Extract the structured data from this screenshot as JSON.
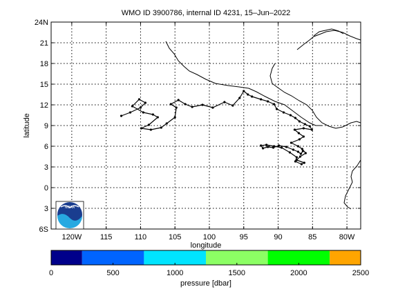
{
  "chart_data": {
    "type": "line",
    "title": "WMO ID 3900786, internal ID 4231, 15–Jun–2022",
    "xlabel": "longitude",
    "ylabel": "latitude",
    "xlim": [
      -123,
      -78
    ],
    "ylim": [
      -6,
      24
    ],
    "grid": true,
    "x_ticks": [
      {
        "value": -120,
        "label": "120W"
      },
      {
        "value": -115,
        "label": "115"
      },
      {
        "value": -110,
        "label": "110"
      },
      {
        "value": -105,
        "label": "105"
      },
      {
        "value": -100,
        "label": "100"
      },
      {
        "value": -95,
        "label": "95"
      },
      {
        "value": -90,
        "label": "90"
      },
      {
        "value": -85,
        "label": "85"
      },
      {
        "value": -80,
        "label": "80W"
      }
    ],
    "y_ticks": [
      {
        "value": 24,
        "label": "24N"
      },
      {
        "value": 21,
        "label": "21"
      },
      {
        "value": 18,
        "label": "18"
      },
      {
        "value": 15,
        "label": "15"
      },
      {
        "value": 12,
        "label": "12"
      },
      {
        "value": 9,
        "label": "9"
      },
      {
        "value": 6,
        "label": "6"
      },
      {
        "value": 3,
        "label": "3"
      },
      {
        "value": 0,
        "label": "0"
      },
      {
        "value": -3,
        "label": "3"
      },
      {
        "value": -6,
        "label": "6S"
      }
    ],
    "series": [
      {
        "color": "#000000",
        "marker": "dot",
        "x": [
          -112.8,
          -111.5,
          -110.0,
          -109.3,
          -110.2,
          -111.2,
          -109.6,
          -108.2,
          -107.5,
          -108.8,
          -109.9,
          -108.5,
          -107.0,
          -106.2,
          -105.0,
          -104.8,
          -105.6,
          -104.5,
          -103.5,
          -102.5,
          -101.0,
          -99.5,
          -97.8,
          -96.6,
          -95.6,
          -95.0,
          -94.4,
          -93.8,
          -92.5,
          -91.5,
          -90.6,
          -90.2,
          -89.2,
          -88.2,
          -87.5,
          -86.9,
          -86.1,
          -85.4,
          -85.1,
          -86.3,
          -87.6,
          -87.0,
          -86.3,
          -86.9,
          -88.1,
          -87.1,
          -86.5,
          -86.0,
          -86.8,
          -87.3,
          -86.2,
          -86.6,
          -87.5,
          -87.3,
          -88.3,
          -89.5,
          -90.6,
          -91.7,
          -92.5,
          -92.2,
          -91.5,
          -90.7,
          -89.9,
          -88.8,
          -87.8,
          -87.1,
          -86.7,
          -86.4
        ],
        "y": [
          10.4,
          10.9,
          11.6,
          12.3,
          12.8,
          11.8,
          10.9,
          10.6,
          10.2,
          9.1,
          8.6,
          8.4,
          8.7,
          9.3,
          10.2,
          11.6,
          12.1,
          12.7,
          12.1,
          11.7,
          12.0,
          11.6,
          12.4,
          11.9,
          13.0,
          14.0,
          13.5,
          13.2,
          12.8,
          12.5,
          12.1,
          11.4,
          10.9,
          10.5,
          10.1,
          9.6,
          9.2,
          8.9,
          8.4,
          8.6,
          8.4,
          7.9,
          7.4,
          7.0,
          6.5,
          6.0,
          5.6,
          5.0,
          4.5,
          4.0,
          3.6,
          3.4,
          3.8,
          4.4,
          5.1,
          5.8,
          6.0,
          6.2,
          6.1,
          5.7,
          5.9,
          5.8,
          6.1,
          5.9,
          5.5,
          5.2,
          4.9,
          5.3
        ]
      }
    ],
    "colorbar": {
      "label": "pressure [dbar]",
      "ticks": [
        "0",
        "500",
        "1000",
        "1500",
        "2000",
        "2500"
      ],
      "range": [
        0,
        2500
      ],
      "bins": [
        {
          "from": 0,
          "to": 250,
          "color": "#00008b"
        },
        {
          "from": 250,
          "to": 750,
          "color": "#0064ff"
        },
        {
          "from": 750,
          "to": 1250,
          "color": "#00e4ff"
        },
        {
          "from": 1250,
          "to": 1750,
          "color": "#8cff64"
        },
        {
          "from": 1750,
          "to": 2250,
          "color": "#00ff00"
        },
        {
          "from": 2250,
          "to": 2500,
          "color": "#ffa500"
        }
      ]
    },
    "logo": {
      "text": "NOAA"
    }
  }
}
